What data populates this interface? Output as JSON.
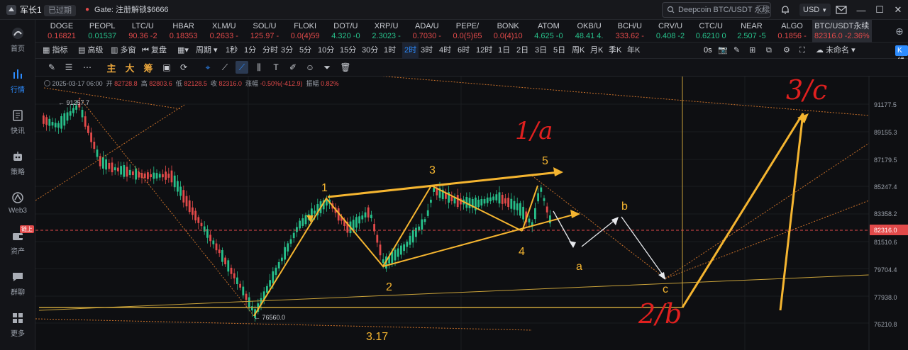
{
  "topbar": {
    "account": "军长1",
    "expired": "已过期",
    "promo": "Gate:  注册解锁$6666",
    "search_text": "Deepcoin BTC/USDT 永续",
    "search_shortcut": "/",
    "currency": "USD"
  },
  "sidebar": {
    "items": [
      {
        "label": "首页",
        "icon": "home-icon"
      },
      {
        "label": "行情",
        "icon": "chart-icon"
      },
      {
        "label": "快讯",
        "icon": "news-icon"
      },
      {
        "label": "策略",
        "icon": "robot-icon"
      },
      {
        "label": "Web3",
        "icon": "web3-icon"
      },
      {
        "label": "资产",
        "icon": "wallet-icon"
      },
      {
        "label": "群聊",
        "icon": "chat-icon"
      },
      {
        "label": "更多",
        "icon": "grid-icon"
      }
    ],
    "chain_badge": "链上"
  },
  "tickers": [
    {
      "name": "DOGE",
      "price": "0.16821",
      "color": "#e24a4a"
    },
    {
      "name": "PEOPL",
      "price": "0.01537",
      "color": "#27c08a"
    },
    {
      "name": "LTC/U",
      "price": "90.36 -2",
      "color": "#e24a4a"
    },
    {
      "name": "HBAR",
      "price": "0.18353",
      "color": "#e24a4a"
    },
    {
      "name": "XLM/U",
      "price": "0.2633 -",
      "color": "#e24a4a"
    },
    {
      "name": "SOL/U",
      "price": "125.97 -",
      "color": "#e24a4a"
    },
    {
      "name": "FLOKI",
      "price": "0.0(4)59",
      "color": "#e24a4a"
    },
    {
      "name": "DOT/U",
      "price": "4.320 -0",
      "color": "#27c08a"
    },
    {
      "name": "XRP/U",
      "price": "2.3023 -",
      "color": "#27c08a"
    },
    {
      "name": "ADA/U",
      "price": "0.7030 -",
      "color": "#e24a4a"
    },
    {
      "name": "PEPE/",
      "price": "0.0(5)65",
      "color": "#e24a4a"
    },
    {
      "name": "BONK",
      "price": "0.0(4)10",
      "color": "#e24a4a"
    },
    {
      "name": "ATOM",
      "price": "4.625 -0",
      "color": "#27c08a"
    },
    {
      "name": "OKB/U",
      "price": "48.41 4.",
      "color": "#27c08a"
    },
    {
      "name": "BCH/U",
      "price": "333.62 -",
      "color": "#e24a4a"
    },
    {
      "name": "CRV/U",
      "price": "0.408 -2",
      "color": "#27c08a"
    },
    {
      "name": "CTC/U",
      "price": "0.6210 0",
      "color": "#27c08a"
    },
    {
      "name": "NEAR",
      "price": "2.507 -5",
      "color": "#27c08a"
    },
    {
      "name": "ALGO",
      "price": "0.1856 -",
      "color": "#e24a4a"
    },
    {
      "name": "BTC/USDT永续",
      "price": "82316.0 -2.36%",
      "color": "#e24a4a"
    }
  ],
  "toolbar": {
    "indicator": "指标",
    "advanced": "高级",
    "multi": "多窗",
    "replay": "复盘",
    "period": "周期",
    "intervals": [
      "1秒",
      "1分",
      "分时",
      "3分",
      "5分",
      "10分",
      "15分",
      "30分",
      "1时",
      "2时",
      "3时",
      "4时",
      "6时",
      "12时",
      "1日",
      "2日",
      "3日",
      "5日",
      "周K",
      "月K",
      "季K",
      "年K"
    ],
    "selected_interval": "2时",
    "countdown": "0s",
    "layout_name": "未命名",
    "kline_analysis": "K线分析"
  },
  "draw_tools": {
    "text_labels": [
      "主",
      "大",
      "筹"
    ]
  },
  "chart_info": {
    "date": "2025-03-17 06:00",
    "open_label": "开",
    "open": "82728.8",
    "high_label": "高",
    "high": "82803.6",
    "low_label": "低",
    "low": "82128.5",
    "close_label": "收",
    "close": "82316.0",
    "change_label": "涨幅",
    "change": "-0.50%(-412.9)",
    "amp_label": "振幅",
    "amp": "0.82%"
  },
  "chart_data": {
    "type": "candlestick",
    "price_axis": [
      "91177.5",
      "89155.3",
      "87179.5",
      "85247.4",
      "83358.2",
      "81510.6",
      "79704.4",
      "77938.0",
      "76210.8"
    ],
    "current_price": "82316.0",
    "high_marker": "91257.7",
    "low_marker": "76560.0",
    "annotations": {
      "w1": "1",
      "w2": "2",
      "w3": "3",
      "w4": "4",
      "w5": "5",
      "wa": "a",
      "wb": "b",
      "wc": "c",
      "big_1a": "1/a",
      "big_2b": "2/b",
      "big_3c": "3/c",
      "date": "3.17"
    }
  }
}
